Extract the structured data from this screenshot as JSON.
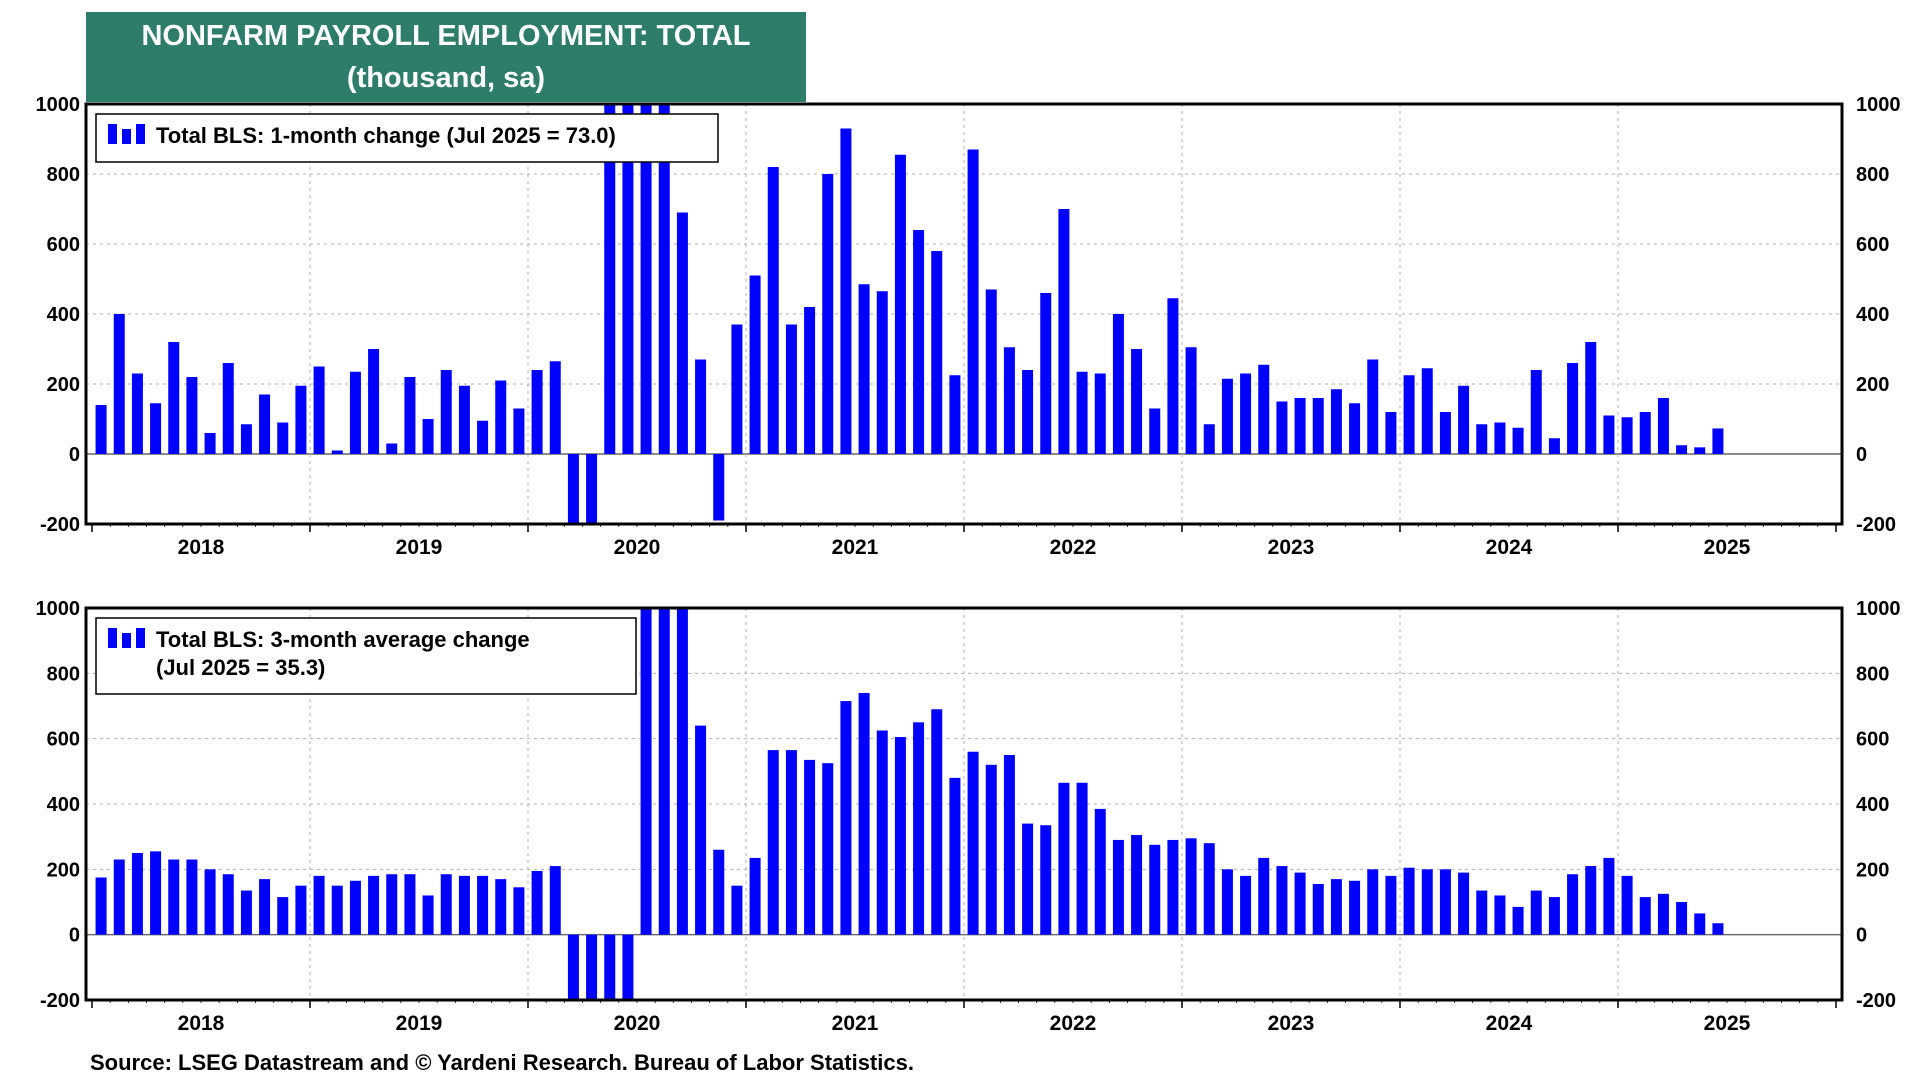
{
  "title": {
    "line1": "NONFARM PAYROLL EMPLOYMENT: TOTAL",
    "line2": "(thousand, sa)"
  },
  "source": "Source: LSEG Datastream and © Yardeni Research. Bureau of Labor Statistics.",
  "colors": {
    "bar": "#0000ff",
    "title_bg": "#2e7d6b",
    "grid": "#b0b0b0"
  },
  "chart_data": [
    {
      "type": "bar",
      "legend": {
        "lines": [
          "Total BLS: 1-month change (Jul 2025 = 73.0)"
        ],
        "placement": "top-left"
      },
      "ylim": [
        -200,
        1000
      ],
      "y_ticks": [
        "1000",
        "800",
        "600",
        "400",
        "200",
        "0",
        "-200"
      ],
      "x_ticks": [
        "2018",
        "2019",
        "2020",
        "2021",
        "2022",
        "2023",
        "2024",
        "2025"
      ],
      "grid": true,
      "start": "2018-01",
      "end": "2025-07",
      "values": [
        140,
        400,
        230,
        145,
        320,
        220,
        60,
        260,
        85,
        170,
        90,
        195,
        250,
        10,
        235,
        300,
        30,
        220,
        100,
        240,
        195,
        95,
        210,
        130,
        240,
        265,
        -200,
        -200,
        1000,
        1000,
        1000,
        1000,
        690,
        270,
        -190,
        370,
        510,
        820,
        370,
        420,
        800,
        930,
        485,
        465,
        855,
        640,
        580,
        225,
        870,
        470,
        305,
        240,
        460,
        700,
        235,
        230,
        400,
        300,
        130,
        445,
        305,
        85,
        215,
        230,
        255,
        150,
        160,
        160,
        185,
        145,
        270,
        120,
        225,
        245,
        120,
        195,
        85,
        90,
        75,
        240,
        45,
        260,
        320,
        110,
        105,
        120,
        160,
        25,
        19,
        73
      ]
    },
    {
      "type": "bar",
      "legend": {
        "lines": [
          "Total BLS: 3-month average change",
          "(Jul 2025 = 35.3)"
        ],
        "placement": "top-left"
      },
      "ylim": [
        -200,
        1000
      ],
      "y_ticks": [
        "1000",
        "800",
        "600",
        "400",
        "200",
        "0",
        "-200"
      ],
      "x_ticks": [
        "2018",
        "2019",
        "2020",
        "2021",
        "2022",
        "2023",
        "2024",
        "2025"
      ],
      "grid": true,
      "start": "2018-01",
      "end": "2025-07",
      "values": [
        175,
        230,
        250,
        255,
        230,
        230,
        200,
        185,
        135,
        170,
        115,
        150,
        180,
        150,
        165,
        180,
        185,
        185,
        120,
        185,
        180,
        180,
        170,
        145,
        195,
        210,
        -200,
        -200,
        -200,
        -200,
        1000,
        1000,
        1000,
        640,
        260,
        150,
        235,
        565,
        565,
        535,
        525,
        715,
        740,
        625,
        605,
        650,
        690,
        480,
        560,
        520,
        550,
        340,
        335,
        465,
        465,
        385,
        290,
        305,
        275,
        290,
        295,
        280,
        200,
        180,
        235,
        210,
        190,
        155,
        170,
        165,
        200,
        180,
        205,
        200,
        200,
        190,
        135,
        120,
        85,
        135,
        115,
        185,
        210,
        235,
        180,
        115,
        125,
        100,
        65,
        35
      ]
    }
  ]
}
